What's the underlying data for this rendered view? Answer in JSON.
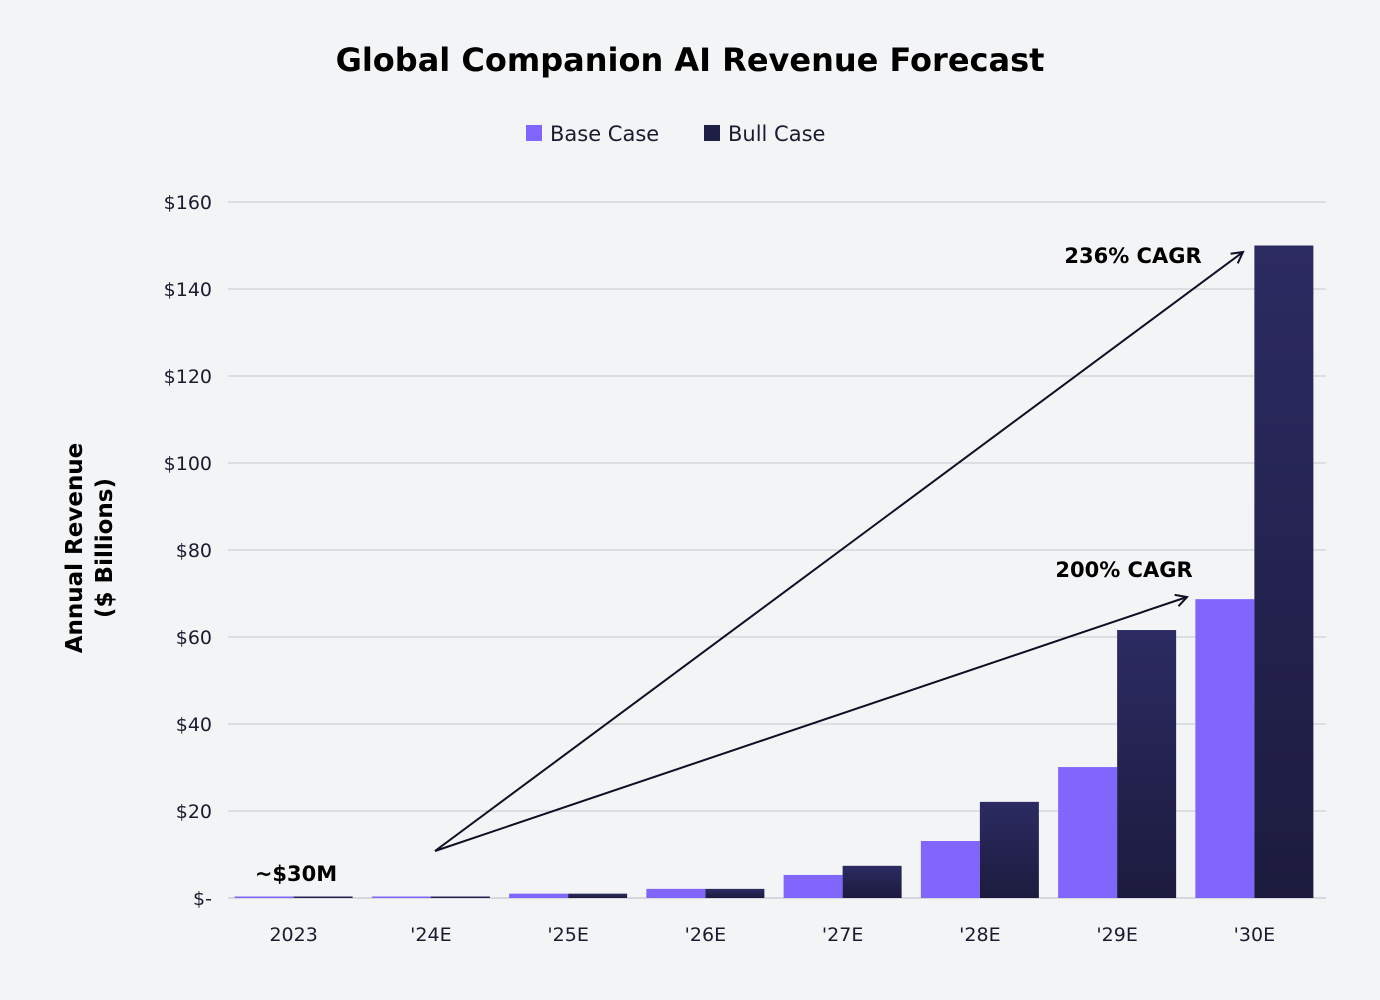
{
  "chart_data": {
    "type": "bar",
    "title": "Global Companion AI Revenue Forecast",
    "ylabel_line1": "Annual Revenue",
    "ylabel_line2": "($ Billions)",
    "xlabel": "",
    "categories": [
      "2023",
      "'24E",
      "'25E",
      "'26E",
      "'27E",
      "'28E",
      "'29E",
      "'30E"
    ],
    "series": [
      {
        "name": "Base Case",
        "color": "#8066fb",
        "values": [
          0.03,
          0.2,
          1.0,
          2.1,
          5.3,
          13.1,
          30.1,
          68.7
        ]
      },
      {
        "name": "Bull Case",
        "color": "#1f1e44",
        "values": [
          0.03,
          0.2,
          1.0,
          2.1,
          7.4,
          22.1,
          61.6,
          150
        ]
      }
    ],
    "ylim": [
      0,
      160
    ],
    "yticks": [
      0,
      20,
      40,
      60,
      80,
      100,
      120,
      140,
      160
    ],
    "ytick_labels": [
      "$-",
      "$20",
      "$40",
      "$60",
      "$80",
      "$100",
      "$120",
      "$140",
      "$160"
    ],
    "grid": "horizontal",
    "legend_position": "top-center",
    "annotations": {
      "first_value": "~$30M",
      "bull_cagr": "236% CAGR",
      "base_cagr": "200% CAGR"
    }
  }
}
